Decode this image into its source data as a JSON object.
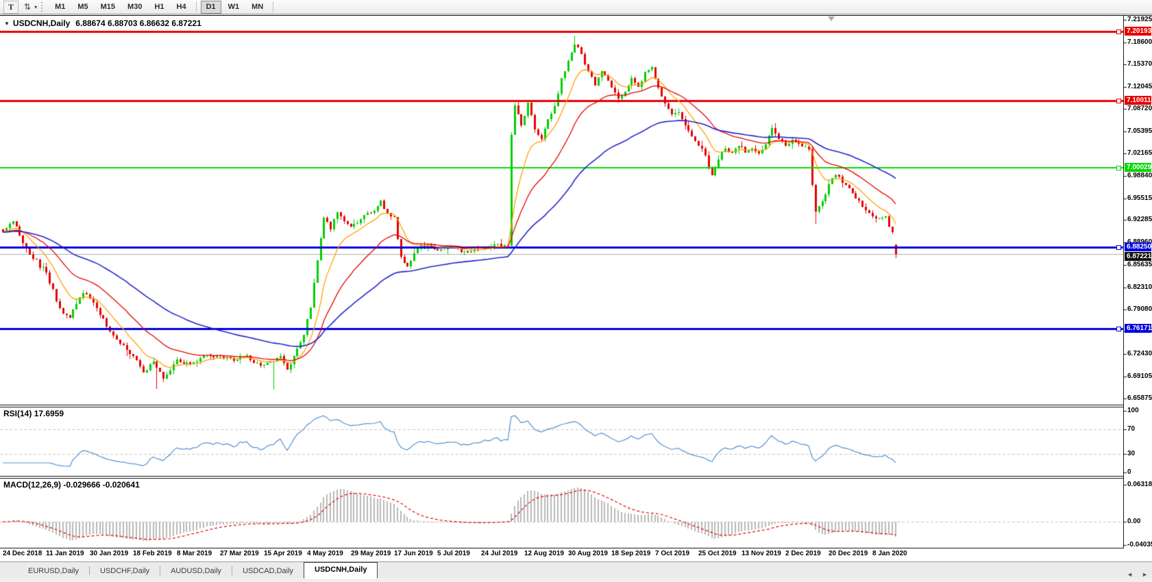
{
  "toolbar": {
    "text_tool_label": "T",
    "arrows_icon": "⇅",
    "caret_icon": "▾",
    "timeframe_groups": [
      [
        "M1",
        "M5",
        "M15",
        "M30",
        "H1",
        "H4"
      ],
      [
        "D1",
        "W1",
        "MN"
      ]
    ],
    "active_timeframe": "D1"
  },
  "chart": {
    "symbol": "USDCNH,Daily",
    "ohlc_text": "6.88674 6.88703 6.86632 6.87221",
    "collapse_arrow": "▼"
  },
  "rsi": {
    "label": "RSI(14)",
    "value": "17.6959",
    "axis_labels": [
      "100",
      "70",
      "30",
      "0"
    ],
    "dashed_levels": [
      70,
      30
    ]
  },
  "macd": {
    "label": "MACD(12,26,9)",
    "values": "-0.029666 -0.020641",
    "axis_labels": [
      "0.063184",
      "0.00",
      "-0.040355"
    ]
  },
  "price_axis_labels": [
    "7.21925",
    "7.18600",
    "7.15370",
    "7.12045",
    "7.08720",
    "7.05395",
    "7.02165",
    "6.98840",
    "6.95515",
    "6.92285",
    "6.88960",
    "6.85635",
    "6.82310",
    "6.79080",
    "6.75755",
    "6.72430",
    "6.69105",
    "6.65875"
  ],
  "dates": [
    "24 Dec 2018",
    "11 Jan 2019",
    "30 Jan 2019",
    "18 Feb 2019",
    "8 Mar 2019",
    "27 Mar 2019",
    "15 Apr 2019",
    "4 May 2019",
    "29 May 2019",
    "17 Jun 2019",
    "5 Jul 2019",
    "24 Jul 2019",
    "12 Aug 2019",
    "30 Aug 2019",
    "18 Sep 2019",
    "7 Oct 2019",
    "25 Oct 2019",
    "13 Nov 2019",
    "2 Dec 2019",
    "20 Dec 2019",
    "8 Jan 2020"
  ],
  "tabs": {
    "items": [
      {
        "label": "EURUSD,Daily",
        "active": false
      },
      {
        "label": "USDCHF,Daily",
        "active": false
      },
      {
        "label": "AUDUSD,Daily",
        "active": false
      },
      {
        "label": "USDCAD,Daily",
        "active": false
      },
      {
        "label": "USDCNH,Daily",
        "active": true
      }
    ],
    "left_scroll_icon": "◄",
    "right_scroll_icon": "►"
  },
  "colors": {
    "bull": "#00CF00",
    "bear": "#E60000",
    "ma_fast": "#FFA000",
    "ma_mid": "#E60000",
    "ma_slow": "#2222CC",
    "hline_red": "#E60000",
    "hline_green": "#00D900",
    "hline_blue": "#0000E0",
    "current_line": "#ABABAB",
    "current_tag_bg": "#111111",
    "rsi_line": "#4E8FD0",
    "macd_hist": "#B8B8B8",
    "macd_signal": "#E60000",
    "dashed_level": "#C4C4C4"
  },
  "chart_data": {
    "type": "candlestick",
    "symbol": "USDCNH",
    "timeframe": "Daily",
    "candle_count": 268,
    "y_axis_ticks": [
      7.21925,
      7.186,
      7.1537,
      7.12045,
      7.0872,
      7.05395,
      7.02165,
      6.9884,
      6.95515,
      6.92285,
      6.8896,
      6.85635,
      6.8231,
      6.7908,
      6.75755,
      6.7243,
      6.69105,
      6.65875
    ],
    "last_candle": {
      "open": 6.88674,
      "high": 6.88703,
      "low": 6.86632,
      "close": 6.87221
    },
    "close_anchors": [
      [
        0,
        6.905
      ],
      [
        3,
        6.921
      ],
      [
        8,
        6.872
      ],
      [
        13,
        6.845
      ],
      [
        17,
        6.792
      ],
      [
        20,
        6.778
      ],
      [
        24,
        6.815
      ],
      [
        27,
        6.801
      ],
      [
        31,
        6.765
      ],
      [
        34,
        6.746
      ],
      [
        39,
        6.721
      ],
      [
        42,
        6.697
      ],
      [
        45,
        6.713
      ],
      [
        48,
        6.688
      ],
      [
        52,
        6.716
      ],
      [
        56,
        6.709
      ],
      [
        60,
        6.722
      ],
      [
        65,
        6.721
      ],
      [
        69,
        6.714
      ],
      [
        73,
        6.722
      ],
      [
        77,
        6.707
      ],
      [
        80,
        6.713
      ],
      [
        83,
        6.721
      ],
      [
        85,
        6.701
      ],
      [
        88,
        6.733
      ],
      [
        90,
        6.753
      ],
      [
        92,
        6.793
      ],
      [
        94,
        6.863
      ],
      [
        96,
        6.926
      ],
      [
        98,
        6.909
      ],
      [
        100,
        6.934
      ],
      [
        102,
        6.921
      ],
      [
        104,
        6.913
      ],
      [
        107,
        6.924
      ],
      [
        110,
        6.933
      ],
      [
        113,
        6.952
      ],
      [
        115,
        6.933
      ],
      [
        117,
        6.927
      ],
      [
        119,
        6.869
      ],
      [
        121,
        6.854
      ],
      [
        124,
        6.883
      ],
      [
        127,
        6.887
      ],
      [
        130,
        6.878
      ],
      [
        134,
        6.882
      ],
      [
        138,
        6.877
      ],
      [
        143,
        6.88
      ],
      [
        147,
        6.887
      ],
      [
        151,
        6.885
      ],
      [
        152,
        7.049
      ],
      [
        153,
        7.093
      ],
      [
        155,
        7.063
      ],
      [
        157,
        7.097
      ],
      [
        159,
        7.057
      ],
      [
        161,
        7.043
      ],
      [
        163,
        7.072
      ],
      [
        165,
        7.092
      ],
      [
        167,
        7.133
      ],
      [
        169,
        7.159
      ],
      [
        171,
        7.183
      ],
      [
        173,
        7.169
      ],
      [
        175,
        7.143
      ],
      [
        177,
        7.122
      ],
      [
        179,
        7.143
      ],
      [
        182,
        7.119
      ],
      [
        184,
        7.103
      ],
      [
        186,
        7.113
      ],
      [
        188,
        7.133
      ],
      [
        190,
        7.12
      ],
      [
        192,
        7.142
      ],
      [
        194,
        7.149
      ],
      [
        196,
        7.119
      ],
      [
        198,
        7.096
      ],
      [
        200,
        7.079
      ],
      [
        202,
        7.083
      ],
      [
        204,
        7.063
      ],
      [
        206,
        7.047
      ],
      [
        208,
        7.033
      ],
      [
        210,
        7.019
      ],
      [
        212,
        6.989
      ],
      [
        214,
        7.013
      ],
      [
        216,
        7.029
      ],
      [
        218,
        7.023
      ],
      [
        220,
        7.033
      ],
      [
        222,
        7.023
      ],
      [
        224,
        7.029
      ],
      [
        226,
        7.022
      ],
      [
        228,
        7.035
      ],
      [
        230,
        7.059
      ],
      [
        232,
        7.043
      ],
      [
        234,
        7.033
      ],
      [
        236,
        7.042
      ],
      [
        238,
        7.036
      ],
      [
        241,
        7.028
      ],
      [
        242,
        6.975
      ],
      [
        243,
        6.935
      ],
      [
        245,
        6.951
      ],
      [
        247,
        6.976
      ],
      [
        249,
        6.99
      ],
      [
        252,
        6.975
      ],
      [
        255,
        6.955
      ],
      [
        258,
        6.937
      ],
      [
        261,
        6.925
      ],
      [
        264,
        6.928
      ],
      [
        266,
        6.905
      ],
      [
        267,
        6.87221
      ]
    ],
    "wick_extremes": [
      [
        46,
        "low",
        6.673
      ],
      [
        81,
        "low",
        6.672
      ],
      [
        171,
        "high",
        7.196
      ],
      [
        243,
        "low",
        6.917
      ]
    ],
    "horizontal_levels": [
      {
        "value": 7.20193,
        "label": "7.20193",
        "color_key": "hline_red",
        "thickness": 3
      },
      {
        "value": 7.10011,
        "label": "7.10011",
        "color_key": "hline_red",
        "thickness": 3
      },
      {
        "value": 7.00029,
        "label": "7.00029",
        "color_key": "hline_green",
        "thickness": 2
      },
      {
        "value": 6.8825,
        "label": "6.88250",
        "color_key": "hline_blue",
        "thickness": 3
      },
      {
        "value": 6.76171,
        "label": "6.76171",
        "color_key": "hline_blue",
        "thickness": 3
      }
    ],
    "current_price": {
      "value": 6.87221,
      "label": "6.87221"
    },
    "moving_averages": [
      {
        "name": "fast",
        "period": 10,
        "color_key": "ma_fast",
        "width": 1.3
      },
      {
        "name": "medium",
        "period": 25,
        "color_key": "ma_mid",
        "width": 1.3
      },
      {
        "name": "slow",
        "period": 60,
        "color_key": "ma_slow",
        "width": 1.6
      }
    ],
    "indicators": {
      "rsi": {
        "period": 14,
        "current": 17.6959,
        "range": [
          0,
          100
        ],
        "levels": [
          70,
          30
        ]
      },
      "macd": {
        "fast": 12,
        "slow": 26,
        "signal": 9,
        "current_main": -0.029666,
        "current_signal": -0.020641,
        "axis_max": 0.063184,
        "axis_min": -0.040355
      }
    }
  }
}
